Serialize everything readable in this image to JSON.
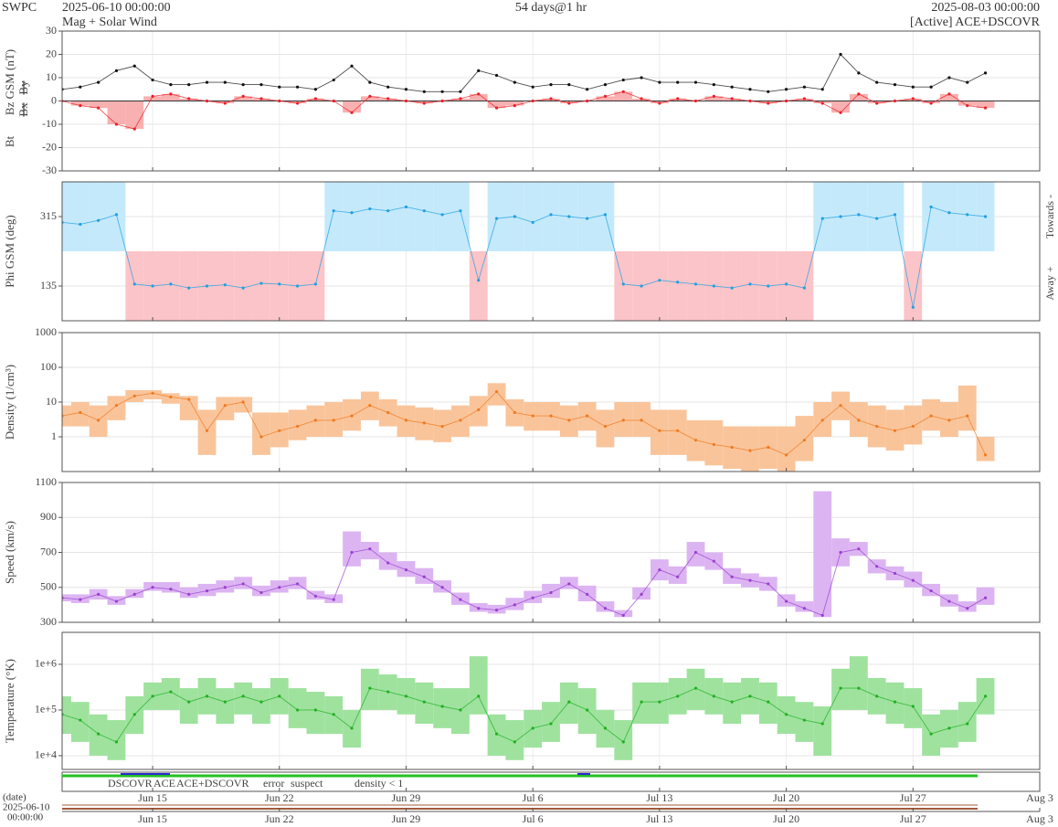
{
  "header": {
    "source": "SWPC",
    "start": "2025-06-10 00:00:00",
    "title": "Mag + Solar Wind",
    "span": "54 days@1 hr",
    "end": "2025-08-03 00:00:00",
    "status": "[Active] ACE+DSCOVR"
  },
  "footer": {
    "axis_label": "(date)",
    "start_date": "2025-06-10",
    "start_time": "00:00:00",
    "legend": [
      {
        "text": "DSCOVR",
        "color": "#2a2ad0"
      },
      {
        "text": "ACE",
        "color": "#20b020"
      },
      {
        "text": "ACE+DSCOVR",
        "color": "#e030e0"
      },
      {
        "text": "error",
        "color": "#e02020"
      },
      {
        "text": "suspect",
        "color": "#e8c800"
      },
      {
        "text": "density < 1",
        "color": "#f07020"
      }
    ]
  },
  "chart_data": [
    {
      "type": "line",
      "ylim": [
        -30,
        30
      ],
      "yticks": [
        -30,
        -20,
        -10,
        0,
        10,
        20,
        30
      ],
      "grid": true,
      "x": [
        0,
        1,
        2,
        3,
        4,
        5,
        6,
        7,
        8,
        9,
        10,
        11,
        12,
        13,
        14,
        15,
        16,
        17,
        18,
        19,
        20,
        21,
        22,
        23,
        24,
        25,
        26,
        27,
        28,
        29,
        30,
        31,
        32,
        33,
        34,
        35,
        36,
        37,
        38,
        39,
        40,
        41,
        42,
        43,
        44,
        45,
        46,
        47,
        48,
        49,
        50,
        51
      ],
      "series": [
        {
          "name": "Bt",
          "color": "#111111",
          "values": [
            5,
            6,
            8,
            13,
            15,
            9,
            7,
            7,
            8,
            8,
            7,
            7,
            6,
            6,
            5,
            9,
            15,
            8,
            6,
            5,
            4,
            4,
            4,
            13,
            11,
            8,
            6,
            7,
            7,
            5,
            7,
            9,
            10,
            8,
            8,
            8,
            7,
            6,
            5,
            4,
            5,
            6,
            5,
            20,
            12,
            8,
            7,
            6,
            6,
            10,
            8,
            12
          ]
        },
        {
          "name": "Bz GSM (nT)",
          "color": "#e8202a",
          "fill": "#f9b0b0",
          "values": [
            0,
            -2,
            -3,
            -10,
            -12,
            2,
            3,
            1,
            0,
            -1,
            2,
            1,
            0,
            -1,
            1,
            0,
            -5,
            2,
            1,
            0,
            -1,
            0,
            1,
            3,
            -3,
            -2,
            0,
            1,
            -1,
            0,
            2,
            4,
            1,
            -1,
            1,
            0,
            2,
            1,
            0,
            -1,
            0,
            1,
            -1,
            -5,
            3,
            -1,
            0,
            1,
            -1,
            3,
            -2,
            -3
          ]
        }
      ],
      "extra_labels": [
        {
          "text": "Bx",
          "color": "#9a40d0"
        },
        {
          "text": "By",
          "color": "#20a8e8"
        }
      ]
    },
    {
      "type": "sector",
      "ylim": [
        45,
        405
      ],
      "yticks": [
        135,
        315
      ],
      "grid": true,
      "x": [
        0,
        1,
        2,
        3,
        4,
        5,
        6,
        7,
        8,
        9,
        10,
        11,
        12,
        13,
        14,
        15,
        16,
        17,
        18,
        19,
        20,
        21,
        22,
        23,
        24,
        25,
        26,
        27,
        28,
        29,
        30,
        31,
        32,
        33,
        34,
        35,
        36,
        37,
        38,
        39,
        40,
        41,
        42,
        43,
        44,
        45,
        46,
        47,
        48,
        49,
        50,
        51
      ],
      "series": [
        {
          "name": "Phi GSM (deg)",
          "color": "#1fa0e0",
          "values": [
            300,
            295,
            305,
            320,
            140,
            135,
            140,
            130,
            135,
            138,
            130,
            142,
            140,
            135,
            140,
            330,
            325,
            335,
            330,
            340,
            330,
            320,
            330,
            150,
            310,
            315,
            300,
            320,
            315,
            310,
            320,
            140,
            135,
            150,
            145,
            140,
            135,
            130,
            140,
            135,
            140,
            130,
            310,
            315,
            320,
            310,
            320,
            80,
            340,
            325,
            320,
            315
          ]
        }
      ],
      "sectors": [
        {
          "label": "Towards -",
          "color": "#c4e9fb"
        },
        {
          "label": "Away +",
          "color": "#fbc4c8"
        }
      ]
    },
    {
      "type": "band",
      "log": true,
      "ylim": [
        0.1,
        1000
      ],
      "yticks": [
        1,
        10,
        100,
        1000
      ],
      "grid": true,
      "x": [
        0,
        1,
        2,
        3,
        4,
        5,
        6,
        7,
        8,
        9,
        10,
        11,
        12,
        13,
        14,
        15,
        16,
        17,
        18,
        19,
        20,
        21,
        22,
        23,
        24,
        25,
        26,
        27,
        28,
        29,
        30,
        31,
        32,
        33,
        34,
        35,
        36,
        37,
        38,
        39,
        40,
        41,
        42,
        43,
        44,
        45,
        46,
        47,
        48,
        49,
        50,
        51
      ],
      "series": [
        {
          "name": "Density (1/cm³)",
          "color": "#f07a20",
          "fill": "#f9c49a",
          "values": [
            4,
            5,
            3,
            8,
            15,
            18,
            14,
            12,
            1.5,
            8,
            10,
            1,
            1.5,
            2,
            3,
            3,
            4,
            8,
            5,
            3,
            2.5,
            2,
            3,
            6,
            20,
            5,
            4,
            4,
            3,
            4,
            2,
            3,
            3,
            1.5,
            1.5,
            0.8,
            0.6,
            0.5,
            0.4,
            0.5,
            0.3,
            0.8,
            3,
            8,
            3,
            2,
            1.5,
            2,
            4,
            3,
            4,
            0.3
          ],
          "low": [
            2,
            2,
            1,
            3,
            10,
            12,
            9,
            3,
            0.3,
            3,
            5,
            0.3,
            0.5,
            0.8,
            1,
            1,
            1.5,
            3,
            2,
            1,
            0.8,
            0.7,
            1,
            2,
            8,
            2,
            1.5,
            1.5,
            1,
            1.5,
            0.5,
            1,
            1,
            0.3,
            0.3,
            0.2,
            0.15,
            0.12,
            0.1,
            0.12,
            0.1,
            0.2,
            1,
            3,
            1,
            0.5,
            0.4,
            0.6,
            1.5,
            1,
            1.5,
            0.2
          ],
          "high": [
            8,
            10,
            8,
            15,
            22,
            22,
            18,
            15,
            6,
            14,
            14,
            5,
            5,
            6,
            8,
            10,
            12,
            20,
            12,
            8,
            7,
            6,
            8,
            15,
            35,
            12,
            10,
            10,
            8,
            10,
            6,
            10,
            10,
            6,
            6,
            3,
            3,
            2,
            2,
            2,
            2,
            4,
            10,
            20,
            10,
            8,
            6,
            8,
            12,
            10,
            30,
            1
          ]
        }
      ]
    },
    {
      "type": "band",
      "ylim": [
        300,
        1100
      ],
      "yticks": [
        300,
        500,
        700,
        900,
        1100
      ],
      "grid": true,
      "x": [
        0,
        1,
        2,
        3,
        4,
        5,
        6,
        7,
        8,
        9,
        10,
        11,
        12,
        13,
        14,
        15,
        16,
        17,
        18,
        19,
        20,
        21,
        22,
        23,
        24,
        25,
        26,
        27,
        28,
        29,
        30,
        31,
        32,
        33,
        34,
        35,
        36,
        37,
        38,
        39,
        40,
        41,
        42,
        43,
        44,
        45,
        46,
        47,
        48,
        49,
        50,
        51
      ],
      "series": [
        {
          "name": "Speed (km/s)",
          "color": "#9a40d0",
          "fill": "#dcb4f2",
          "values": [
            440,
            430,
            460,
            420,
            460,
            500,
            490,
            460,
            480,
            500,
            520,
            470,
            500,
            520,
            450,
            430,
            700,
            720,
            640,
            600,
            560,
            500,
            430,
            380,
            370,
            400,
            440,
            470,
            520,
            460,
            380,
            340,
            460,
            600,
            560,
            700,
            650,
            560,
            540,
            520,
            420,
            380,
            340,
            700,
            720,
            620,
            580,
            540,
            480,
            420,
            380,
            440
          ],
          "low": [
            420,
            410,
            430,
            400,
            440,
            480,
            470,
            440,
            450,
            470,
            490,
            450,
            470,
            490,
            430,
            410,
            620,
            660,
            600,
            560,
            520,
            470,
            400,
            360,
            350,
            370,
            410,
            440,
            490,
            420,
            360,
            330,
            430,
            540,
            520,
            620,
            600,
            520,
            500,
            480,
            390,
            360,
            330,
            620,
            680,
            580,
            540,
            500,
            450,
            390,
            360,
            400
          ],
          "high": [
            460,
            460,
            490,
            450,
            490,
            530,
            530,
            500,
            520,
            540,
            560,
            510,
            540,
            560,
            480,
            460,
            820,
            760,
            700,
            650,
            610,
            540,
            470,
            410,
            400,
            440,
            480,
            520,
            560,
            510,
            420,
            370,
            500,
            660,
            620,
            760,
            700,
            610,
            580,
            560,
            460,
            420,
            1050,
            780,
            760,
            660,
            620,
            590,
            520,
            460,
            420,
            500
          ]
        }
      ]
    },
    {
      "type": "band",
      "log": true,
      "ylim": [
        5000,
        5000000
      ],
      "yticks": [
        {
          "value": 10000,
          "label": "1e+4"
        },
        {
          "value": 100000,
          "label": "1e+5"
        },
        {
          "value": 1000000,
          "label": "1e+6"
        }
      ],
      "grid": true,
      "xlim": [
        0,
        54
      ],
      "xticks": [
        {
          "value": 5,
          "label": "Jun 15"
        },
        {
          "value": 12,
          "label": "Jun 22"
        },
        {
          "value": 19,
          "label": "Jun 29"
        },
        {
          "value": 26,
          "label": "Jul 6"
        },
        {
          "value": 33,
          "label": "Jul 13"
        },
        {
          "value": 40,
          "label": "Jul 20"
        },
        {
          "value": 47,
          "label": "Jul 27"
        },
        {
          "value": 54,
          "label": "Aug 3"
        }
      ],
      "x": [
        0,
        1,
        2,
        3,
        4,
        5,
        6,
        7,
        8,
        9,
        10,
        11,
        12,
        13,
        14,
        15,
        16,
        17,
        18,
        19,
        20,
        21,
        22,
        23,
        24,
        25,
        26,
        27,
        28,
        29,
        30,
        31,
        32,
        33,
        34,
        35,
        36,
        37,
        38,
        39,
        40,
        41,
        42,
        43,
        44,
        45,
        46,
        47,
        48,
        49,
        50,
        51
      ],
      "series": [
        {
          "name": "Temperature (°K)",
          "color": "#20b020",
          "fill": "#9ee29e",
          "values": [
            80000.0,
            60000.0,
            30000.0,
            20000.0,
            80000.0,
            200000.0,
            250000.0,
            150000.0,
            200000.0,
            150000.0,
            200000.0,
            150000.0,
            200000.0,
            100000.0,
            100000.0,
            80000.0,
            40000.0,
            300000.0,
            250000.0,
            200000.0,
            150000.0,
            120000.0,
            100000.0,
            200000.0,
            30000.0,
            20000.0,
            40000.0,
            50000.0,
            150000.0,
            100000.0,
            40000.0,
            20000.0,
            150000.0,
            150000.0,
            200000.0,
            300000.0,
            200000.0,
            150000.0,
            200000.0,
            150000.0,
            80000.0,
            60000.0,
            50000.0,
            300000.0,
            300000.0,
            200000.0,
            150000.0,
            120000.0,
            30000.0,
            40000.0,
            50000.0,
            200000.0
          ],
          "low": [
            30000.0,
            20000.0,
            10000.0,
            8000.0,
            30000.0,
            100000.0,
            100000.0,
            50000.0,
            80000.0,
            50000.0,
            80000.0,
            50000.0,
            80000.0,
            40000.0,
            30000.0,
            30000.0,
            15000.0,
            100000.0,
            100000.0,
            80000.0,
            50000.0,
            40000.0,
            30000.0,
            80000.0,
            10000.0,
            8000.0,
            15000.0,
            20000.0,
            50000.0,
            30000.0,
            15000.0,
            8000.0,
            50000.0,
            50000.0,
            80000.0,
            100000.0,
            80000.0,
            50000.0,
            80000.0,
            50000.0,
            30000.0,
            20000.0,
            10000.0,
            100000.0,
            100000.0,
            80000.0,
            50000.0,
            40000.0,
            10000.0,
            15000.0,
            20000.0,
            80000.0
          ],
          "high": [
            200000.0,
            150000.0,
            80000.0,
            60000.0,
            200000.0,
            400000.0,
            500000.0,
            300000.0,
            500000.0,
            300000.0,
            400000.0,
            300000.0,
            500000.0,
            300000.0,
            250000.0,
            200000.0,
            100000.0,
            800000.0,
            600000.0,
            500000.0,
            400000.0,
            300000.0,
            300000.0,
            1500000.0,
            80000.0,
            60000.0,
            100000.0,
            150000.0,
            400000.0,
            300000.0,
            100000.0,
            60000.0,
            400000.0,
            400000.0,
            500000.0,
            800000.0,
            500000.0,
            400000.0,
            500000.0,
            400000.0,
            200000.0,
            150000.0,
            120000.0,
            800000.0,
            1500000.0,
            500000.0,
            400000.0,
            300000.0,
            80000.0,
            100000.0,
            150000.0,
            500000.0
          ]
        }
      ]
    }
  ]
}
